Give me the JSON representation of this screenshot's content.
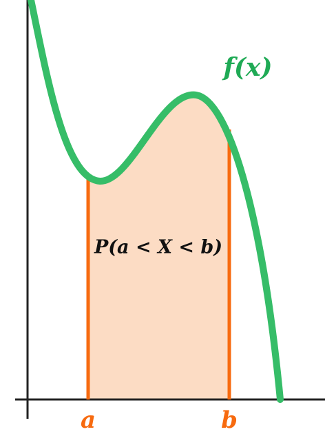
{
  "labels": {
    "function": "f(x)",
    "probability": "P(a < X < b)",
    "lower": "a",
    "upper": "b"
  }
}
